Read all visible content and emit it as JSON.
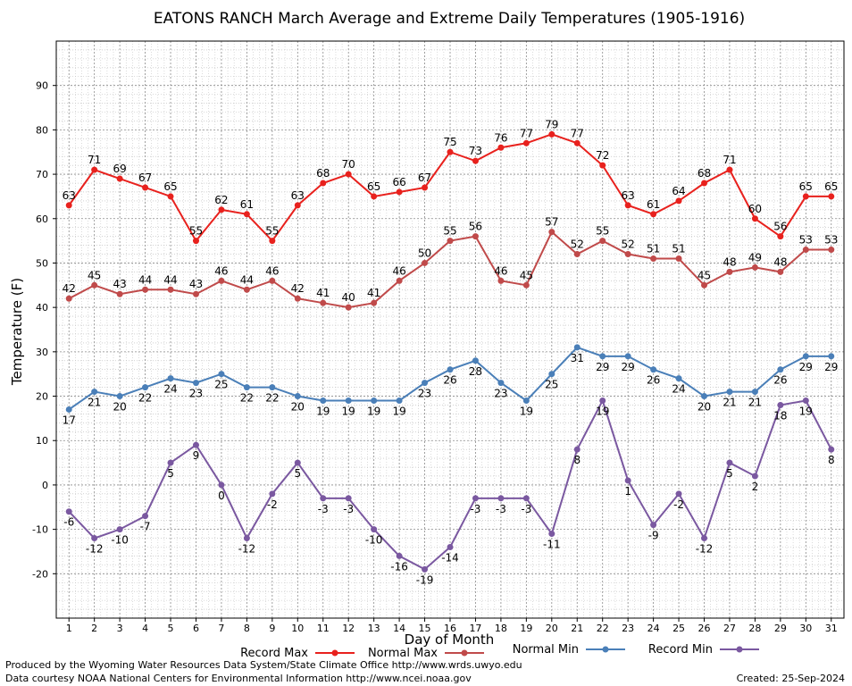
{
  "chart_data": {
    "type": "line",
    "title": "EATONS RANCH March Average and Extreme Daily Temperatures (1905-1916)",
    "xlabel": "Day of Month",
    "ylabel": "Temperature (F)",
    "x": [
      1,
      2,
      3,
      4,
      5,
      6,
      7,
      8,
      9,
      10,
      11,
      12,
      13,
      14,
      15,
      16,
      17,
      18,
      19,
      20,
      21,
      22,
      23,
      24,
      25,
      26,
      27,
      28,
      29,
      30,
      31
    ],
    "ylim": [
      -30,
      100
    ],
    "yticks": [
      -20,
      -10,
      0,
      10,
      20,
      30,
      40,
      50,
      60,
      70,
      80,
      90
    ],
    "grid": true,
    "legend_position": "bottom",
    "series": [
      {
        "name": "Record Max",
        "color": "#e8211d",
        "label_pos": "above",
        "values": [
          63,
          71,
          69,
          67,
          65,
          55,
          62,
          61,
          55,
          63,
          68,
          70,
          65,
          66,
          67,
          75,
          73,
          76,
          77,
          79,
          77,
          72,
          63,
          61,
          64,
          68,
          71,
          60,
          56,
          65,
          65
        ]
      },
      {
        "name": "Normal Max",
        "color": "#c04a4a",
        "label_pos": "above",
        "values": [
          42,
          45,
          43,
          44,
          44,
          43,
          46,
          44,
          46,
          42,
          41,
          40,
          41,
          46,
          50,
          55,
          56,
          46,
          45,
          57,
          52,
          55,
          52,
          51,
          51,
          45,
          48,
          49,
          48,
          53,
          53
        ]
      },
      {
        "name": "Normal Min",
        "color": "#4a7fb8",
        "label_pos": "below",
        "values": [
          17,
          21,
          20,
          22,
          24,
          23,
          25,
          22,
          22,
          20,
          19,
          19,
          19,
          19,
          23,
          26,
          28,
          23,
          19,
          25,
          31,
          29,
          29,
          26,
          24,
          20,
          21,
          21,
          26,
          29,
          29
        ]
      },
      {
        "name": "Record Min",
        "color": "#7a58a0",
        "label_pos": "below",
        "values": [
          -6,
          -12,
          -10,
          -7,
          5,
          9,
          0,
          -12,
          -2,
          5,
          -3,
          -3,
          -10,
          -16,
          -19,
          -14,
          -3,
          -3,
          -3,
          -11,
          8,
          19,
          1,
          -9,
          -2,
          -12,
          5,
          2,
          18,
          19,
          8
        ]
      }
    ]
  },
  "footer": {
    "produced_by": "Produced by the Wyoming Water Resources Data System/State Climate Office http://www.wrds.uwyo.edu",
    "data_courtesy": "Data courtesy NOAA National Centers for Environmental Information http://www.ncei.noaa.gov",
    "created": "Created:  25-Sep-2024"
  }
}
